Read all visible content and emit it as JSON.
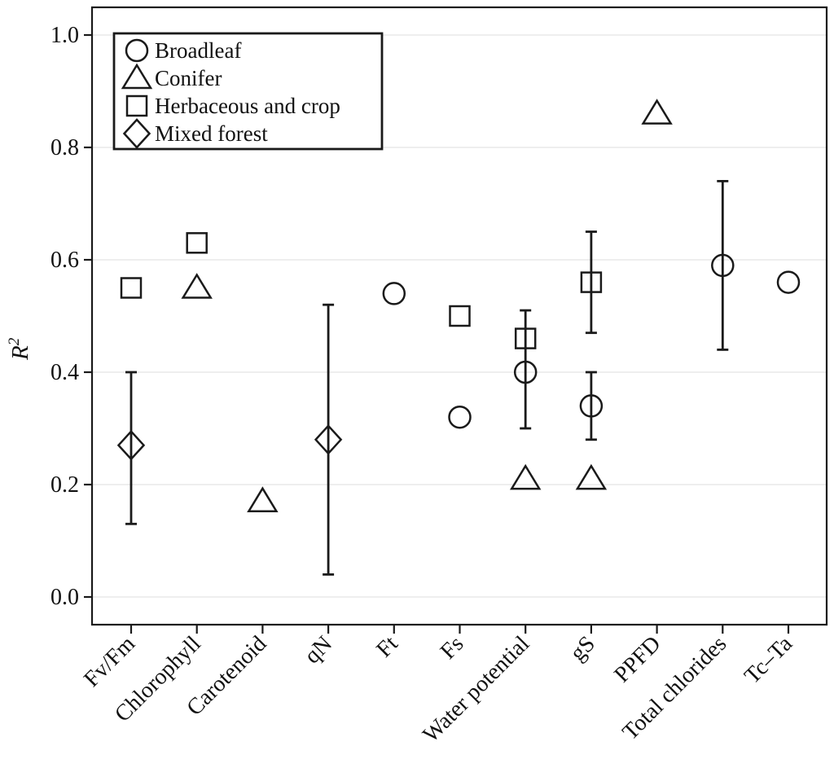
{
  "figure": {
    "background": "#ffffff",
    "axis_color": "#1a1a1a",
    "grid_color": "#e8e8e8",
    "text_color": "#111111"
  },
  "chart_data": {
    "type": "scatter",
    "title": "",
    "xlabel": "",
    "ylabel": "R²",
    "ylabel_base": "R",
    "ylabel_sup": "2",
    "ylim": [
      0.0,
      1.0
    ],
    "yticks": [
      "0.0",
      "0.2",
      "0.4",
      "0.6",
      "0.8",
      "1.0"
    ],
    "grid": "horizontal",
    "legend_position": "top-left",
    "categories": [
      "Fv/Fm",
      "Chlorophyll",
      "Carotenoid",
      "qN",
      "Ft",
      "Fs",
      "Water potential",
      "gS",
      "PPFD",
      "Total chlorides",
      "Tc–Ta"
    ],
    "legend": [
      {
        "label": "Broadleaf",
        "marker": "circle"
      },
      {
        "label": "Conifer",
        "marker": "triangle"
      },
      {
        "label": "Herbaceous and crop",
        "marker": "square"
      },
      {
        "label": "Mixed forest",
        "marker": "diamond"
      }
    ],
    "series": [
      {
        "name": "Broadleaf",
        "marker": "circle",
        "points": [
          {
            "category": "Ft",
            "value": 0.54
          },
          {
            "category": "Fs",
            "value": 0.32
          },
          {
            "category": "Water potential",
            "value": 0.4,
            "err_low": 0.3,
            "err_high": 0.51
          },
          {
            "category": "gS",
            "value": 0.34,
            "err_low": 0.28,
            "err_high": 0.4
          },
          {
            "category": "Total chlorides",
            "value": 0.59,
            "err_low": 0.44,
            "err_high": 0.74
          },
          {
            "category": "Tc–Ta",
            "value": 0.56
          }
        ]
      },
      {
        "name": "Conifer",
        "marker": "triangle",
        "points": [
          {
            "category": "Chlorophyll",
            "value": 0.55
          },
          {
            "category": "Carotenoid",
            "value": 0.17
          },
          {
            "category": "Water potential",
            "value": 0.21
          },
          {
            "category": "gS",
            "value": 0.21
          },
          {
            "category": "PPFD",
            "value": 0.86
          }
        ]
      },
      {
        "name": "Herbaceous and crop",
        "marker": "square",
        "points": [
          {
            "category": "Fv/Fm",
            "value": 0.55
          },
          {
            "category": "Chlorophyll",
            "value": 0.63
          },
          {
            "category": "Fs",
            "value": 0.5
          },
          {
            "category": "Water potential",
            "value": 0.46
          },
          {
            "category": "gS",
            "value": 0.56,
            "err_low": 0.47,
            "err_high": 0.65
          }
        ]
      },
      {
        "name": "Mixed forest",
        "marker": "diamond",
        "points": [
          {
            "category": "Fv/Fm",
            "value": 0.27,
            "err_low": 0.13,
            "err_high": 0.4
          },
          {
            "category": "qN",
            "value": 0.28,
            "err_low": 0.04,
            "err_high": 0.52
          }
        ]
      }
    ]
  }
}
